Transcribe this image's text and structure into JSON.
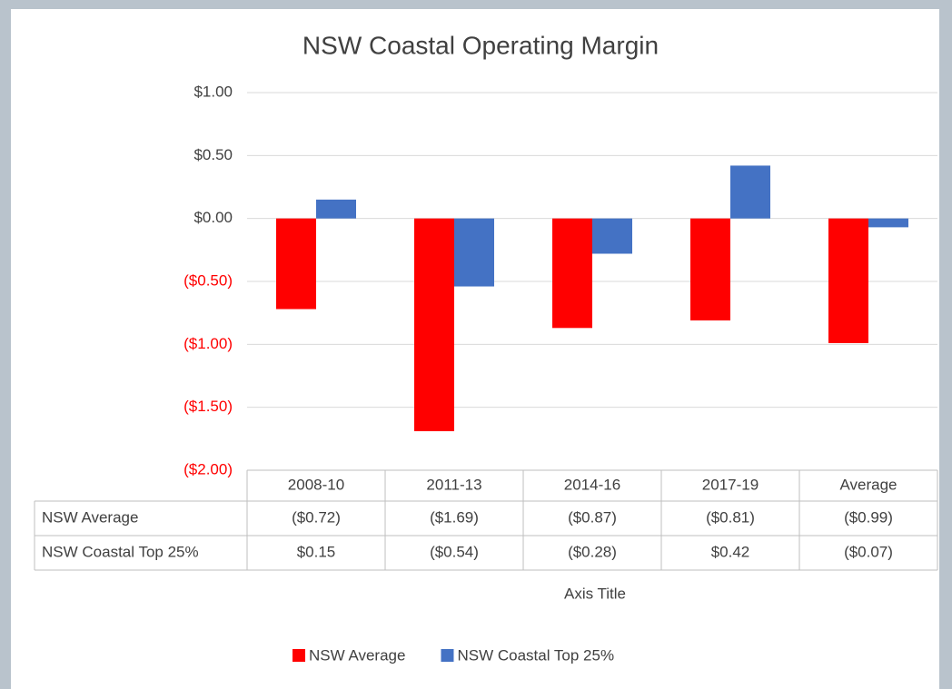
{
  "chart_data": {
    "type": "bar",
    "title": "NSW Coastal Operating Margin",
    "categories": [
      "2008-10",
      "2011-13",
      "2014-16",
      "2017-19",
      "Average"
    ],
    "series": [
      {
        "name": "NSW Average",
        "color": "#ff0000",
        "values": [
          -0.72,
          -1.69,
          -0.87,
          -0.81,
          -0.99
        ],
        "value_labels": [
          "($0.72)",
          "($1.69)",
          "($0.87)",
          "($0.81)",
          "($0.99)"
        ]
      },
      {
        "name": "NSW Coastal Top 25%",
        "color": "#4472c4",
        "values": [
          0.15,
          -0.54,
          -0.28,
          0.42,
          -0.07
        ],
        "value_labels": [
          "$0.15",
          "($0.54)",
          "($0.28)",
          "$0.42",
          "($0.07)"
        ]
      }
    ],
    "x_axis_title": "Axis Title",
    "ylim": [
      -2,
      1
    ],
    "yticks": [
      {
        "value": -2,
        "label": "($2.00)"
      },
      {
        "value": -1.5,
        "label": "($1.50)"
      },
      {
        "value": -1,
        "label": "($1.00)"
      },
      {
        "value": -0.5,
        "label": "($0.50)"
      },
      {
        "value": 0,
        "label": "$0.00"
      },
      {
        "value": 0.5,
        "label": "$0.50"
      },
      {
        "value": 1,
        "label": "$1.00"
      }
    ],
    "negative_tick_color": "#ff0000",
    "grid": true,
    "legend": "bottom"
  }
}
